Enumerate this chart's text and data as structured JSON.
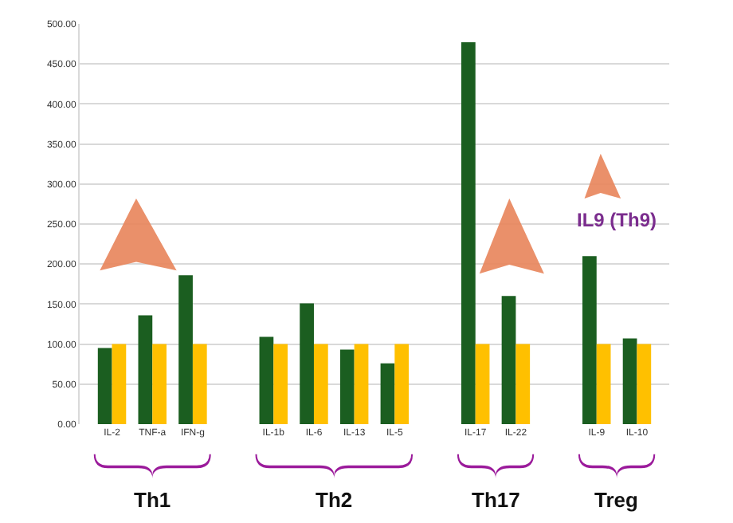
{
  "chart_data": {
    "type": "bar",
    "categories": [
      "IL-2",
      "TNF-a",
      "IFN-g",
      null,
      "IL-1b",
      "IL-6",
      "IL-13",
      "IL-5",
      null,
      "IL-17",
      "IL-22",
      null,
      "IL-9",
      "IL-10"
    ],
    "series": [
      {
        "color": "#1b5e20",
        "values": [
          95,
          136,
          186,
          null,
          109,
          151,
          93,
          76,
          null,
          477,
          160,
          null,
          210,
          107
        ]
      },
      {
        "color": "#ffc000",
        "values": [
          100,
          100,
          100,
          null,
          100,
          100,
          100,
          100,
          null,
          100,
          100,
          null,
          100,
          100
        ]
      }
    ],
    "ylim": [
      0,
      500
    ],
    "yticks": [
      {
        "value": 0,
        "label": "0.00"
      },
      {
        "value": 50,
        "label": "50.00"
      },
      {
        "value": 100,
        "label": "100.00"
      },
      {
        "value": 150,
        "label": "150.00"
      },
      {
        "value": 200,
        "label": "200.00"
      },
      {
        "value": 250,
        "label": "250.00"
      },
      {
        "value": 300,
        "label": "300.00"
      },
      {
        "value": 350,
        "label": "350.00"
      },
      {
        "value": 400,
        "label": "400.00"
      },
      {
        "value": 450,
        "label": "450.00"
      },
      {
        "value": 500,
        "label": "500.00"
      }
    ],
    "grid": "y",
    "annotations": [
      "Th1",
      "Th2",
      "Th17",
      "Treg",
      "IL9 (Th9)"
    ]
  }
}
